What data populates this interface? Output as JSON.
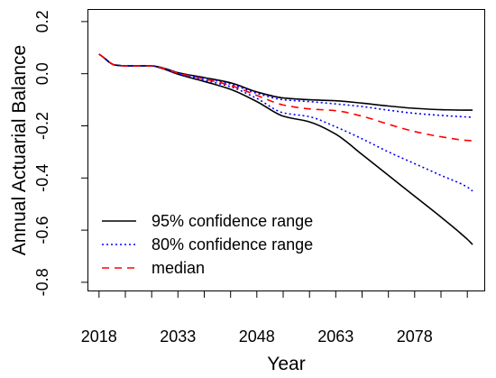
{
  "chart_data": {
    "type": "line",
    "xlabel": "Year",
    "ylabel": "Annual Actuarial Balance",
    "xlim": [
      2015.8,
      2091.4
    ],
    "ylim": [
      -0.835,
      0.248
    ],
    "xticks": [
      2018,
      2023,
      2028,
      2033,
      2038,
      2043,
      2048,
      2053,
      2058,
      2063,
      2068,
      2073,
      2078,
      2083,
      2088
    ],
    "xtick_labels": [
      "2018",
      "2033",
      "2048",
      "2063",
      "2078"
    ],
    "yticks": [
      0.2,
      0.0,
      -0.2,
      -0.4,
      -0.6,
      -0.8
    ],
    "ytick_labels": [
      "0.2",
      "0.0",
      "-0.2",
      "-0.4",
      "-0.6",
      "-0.8"
    ],
    "grid": false,
    "legend_position": "bottom-left",
    "x": [
      2018,
      2019,
      2020,
      2021,
      2023,
      2028,
      2030,
      2033,
      2038,
      2043,
      2048,
      2053,
      2058,
      2063,
      2068,
      2073,
      2078,
      2083,
      2088,
      2089
    ],
    "series": [
      {
        "name": "95% confidence range",
        "color": "#000000",
        "line_style": "solid",
        "upper": [
          0.075,
          0.06,
          0.043,
          0.033,
          0.03,
          0.03,
          0.023,
          0.004,
          -0.015,
          -0.035,
          -0.07,
          -0.093,
          -0.1,
          -0.104,
          -0.113,
          -0.124,
          -0.133,
          -0.138,
          -0.14,
          -0.14
        ],
        "lower": [
          0.075,
          0.06,
          0.043,
          0.033,
          0.03,
          0.03,
          0.02,
          -0.002,
          -0.03,
          -0.06,
          -0.107,
          -0.163,
          -0.185,
          -0.232,
          -0.31,
          -0.39,
          -0.47,
          -0.55,
          -0.635,
          -0.655
        ]
      },
      {
        "name": "80% confidence range",
        "color": "#0000FF",
        "line_style": "dotted",
        "upper": [
          0.075,
          0.06,
          0.043,
          0.033,
          0.03,
          0.03,
          0.022,
          0.003,
          -0.018,
          -0.04,
          -0.075,
          -0.1,
          -0.107,
          -0.116,
          -0.126,
          -0.14,
          -0.152,
          -0.16,
          -0.166,
          -0.167
        ],
        "lower": [
          0.075,
          0.06,
          0.043,
          0.033,
          0.03,
          0.03,
          0.021,
          0.0,
          -0.025,
          -0.05,
          -0.095,
          -0.15,
          -0.165,
          -0.204,
          -0.25,
          -0.3,
          -0.345,
          -0.39,
          -0.435,
          -0.45
        ]
      },
      {
        "name": "median",
        "color": "#FF0000",
        "line_style": "dashed",
        "values": [
          0.075,
          0.06,
          0.043,
          0.033,
          0.03,
          0.03,
          0.022,
          0.002,
          -0.02,
          -0.045,
          -0.083,
          -0.12,
          -0.135,
          -0.142,
          -0.163,
          -0.194,
          -0.222,
          -0.242,
          -0.256,
          -0.257
        ]
      }
    ]
  }
}
